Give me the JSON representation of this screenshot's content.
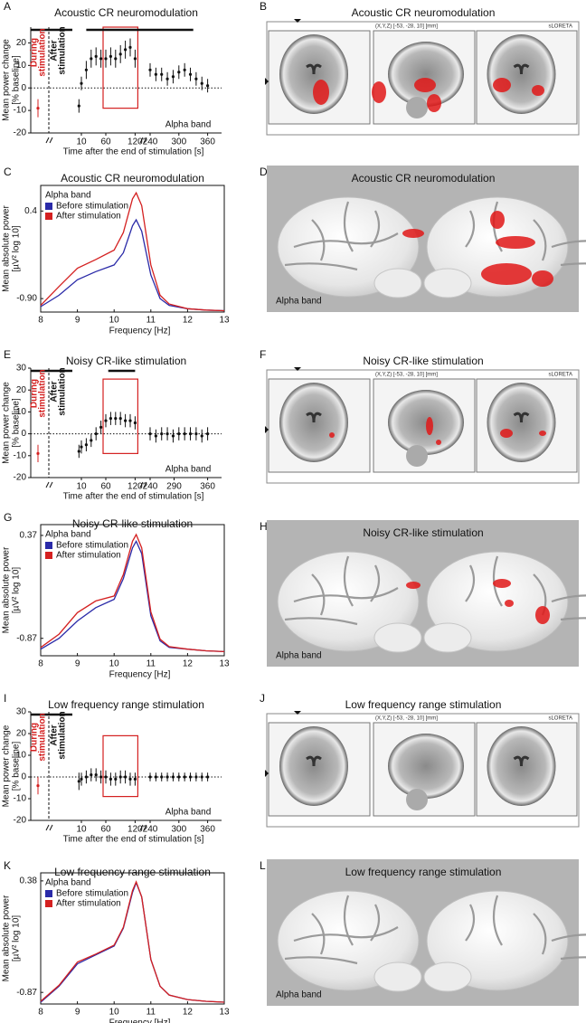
{
  "chart_data": [
    {
      "type": "errorbar",
      "letter": "A",
      "title": "Acoustic CR neuromodulation",
      "ylabel": [
        "Mean power change",
        "[% baseline]"
      ],
      "xlabel": "Time after the end of stimulation [s]",
      "during_label": [
        "During",
        "stimulation"
      ],
      "after_label": [
        "After",
        "stimulation"
      ],
      "band": "Alpha band",
      "ylim": [
        -20,
        27
      ],
      "yticks": [
        -20,
        -10,
        0,
        10,
        20
      ],
      "xticks": [
        10,
        60,
        120,
        240,
        300,
        360
      ],
      "during": {
        "value": -9,
        "error": 4,
        "color": "#d42020"
      },
      "sig_during": true,
      "sig_bars": [
        [
          20,
          330
        ]
      ],
      "highlight": {
        "xlim": [
          60,
          120
        ],
        "ylim": [
          -9,
          27
        ],
        "color": "#d42020"
      },
      "series": [
        {
          "x": [
            5,
            10,
            20,
            30,
            40,
            50,
            60,
            70,
            80,
            90,
            100,
            110,
            120
          ],
          "values": [
            -8,
            2,
            8,
            13,
            14,
            13,
            13,
            14,
            13,
            15,
            17,
            18,
            13
          ],
          "errors": [
            3,
            3,
            4,
            4,
            4,
            4,
            4,
            4,
            4,
            4,
            4,
            4,
            4
          ],
          "color": "#111111"
        },
        {
          "x": [
            240,
            252,
            264,
            276,
            288,
            300,
            312,
            324,
            336,
            348,
            360
          ],
          "values": [
            8,
            6,
            6,
            4,
            5,
            7,
            8,
            6,
            4,
            2,
            1
          ],
          "errors": [
            3,
            3,
            3,
            3,
            3,
            3,
            3,
            3,
            3,
            3,
            3
          ],
          "color": "#111111"
        }
      ]
    },
    {
      "type": "line",
      "letter": "C",
      "title": "Acoustic CR neuromodulation",
      "ylabel": [
        "Mean absolute power",
        "[µV² log 10]"
      ],
      "xlabel": "Frequency [Hz]",
      "legend_title": "Alpha band",
      "ylim": [
        -1.1,
        0.78
      ],
      "yticks": [
        {
          "value": -0.9,
          "label": "-0.90"
        },
        0.4
      ],
      "xlim": [
        8,
        13
      ],
      "xticks": [
        8,
        9,
        10,
        11,
        12,
        13
      ],
      "x": [
        8,
        8.5,
        9,
        9.5,
        10,
        10.25,
        10.5,
        10.6,
        10.75,
        11,
        11.25,
        11.5,
        12,
        12.5,
        13
      ],
      "series": [
        {
          "name": "Before stimulation",
          "color": "#2a2aa8",
          "values": [
            -1.02,
            -0.85,
            -0.62,
            -0.5,
            -0.4,
            -0.22,
            0.18,
            0.27,
            0.1,
            -0.55,
            -0.9,
            -1.0,
            -1.05,
            -1.07,
            -1.08
          ]
        },
        {
          "name": "After stimulation",
          "color": "#d42020",
          "values": [
            -1.0,
            -0.72,
            -0.45,
            -0.32,
            -0.18,
            0.08,
            0.58,
            0.67,
            0.48,
            -0.4,
            -0.85,
            -0.98,
            -1.05,
            -1.07,
            -1.08
          ]
        }
      ]
    },
    {
      "type": "errorbar",
      "letter": "E",
      "title": "Noisy CR-like stimulation",
      "ylabel": [
        "Mean power change",
        "[% baseline]"
      ],
      "xlabel": "Time after the end of stimulation [s]",
      "during_label": [
        "During",
        "stimulation"
      ],
      "after_label": [
        "After",
        "stimulation"
      ],
      "band": "Alpha band",
      "ylim": [
        -20,
        30
      ],
      "yticks": [
        -20,
        -10,
        0,
        10,
        20,
        30
      ],
      "xticks": [
        10,
        60,
        120,
        240,
        290,
        360
      ],
      "during": {
        "value": -9,
        "error": 4,
        "color": "#d42020"
      },
      "sig_during": true,
      "sig_bars": [
        [
          65,
          120
        ]
      ],
      "highlight": {
        "xlim": [
          60,
          120
        ],
        "ylim": [
          -9,
          25
        ],
        "color": "#d42020"
      },
      "series": [
        {
          "x": [
            5,
            10,
            20,
            30,
            40,
            50,
            60,
            70,
            80,
            90,
            100,
            110,
            120
          ],
          "values": [
            -8,
            -6,
            -5,
            -3,
            0,
            3,
            6,
            7,
            7,
            7,
            6,
            6,
            5
          ],
          "errors": [
            3,
            3,
            3,
            3,
            3,
            3,
            3,
            3,
            3,
            3,
            3,
            3,
            3
          ],
          "color": "#111111"
        },
        {
          "x": [
            240,
            252,
            264,
            276,
            288,
            300,
            312,
            324,
            336,
            348,
            360
          ],
          "values": [
            0,
            -1,
            0,
            0,
            -1,
            0,
            0,
            0,
            0,
            -1,
            0
          ],
          "errors": [
            3,
            3,
            3,
            3,
            3,
            3,
            3,
            3,
            3,
            3,
            3
          ],
          "color": "#111111"
        }
      ]
    },
    {
      "type": "line",
      "letter": "G",
      "title": "Noisy CR-like stimulation",
      "ylabel": [
        "Mean absolute power",
        "[µV² log 10]"
      ],
      "xlabel": "Frequency [Hz]",
      "legend_title": "Alpha band",
      "ylim": [
        -1.08,
        0.5
      ],
      "yticks": [
        -0.87,
        0.37
      ],
      "xlim": [
        8,
        13
      ],
      "xticks": [
        8,
        9,
        10,
        11,
        12,
        13
      ],
      "x": [
        8,
        8.5,
        9,
        9.5,
        10,
        10.25,
        10.5,
        10.6,
        10.75,
        11,
        11.25,
        11.5,
        12,
        12.5,
        13
      ],
      "series": [
        {
          "name": "Before stimulation",
          "color": "#2a2aa8",
          "values": [
            -1.0,
            -0.87,
            -0.66,
            -0.5,
            -0.4,
            -0.15,
            0.22,
            0.3,
            0.15,
            -0.6,
            -0.9,
            -0.98,
            -1.0,
            -1.02,
            -1.03
          ]
        },
        {
          "name": "After stimulation",
          "color": "#d42020",
          "values": [
            -0.98,
            -0.82,
            -0.56,
            -0.42,
            -0.36,
            -0.1,
            0.3,
            0.38,
            0.22,
            -0.55,
            -0.88,
            -0.97,
            -1.0,
            -1.02,
            -1.03
          ]
        }
      ]
    },
    {
      "type": "errorbar",
      "letter": "I",
      "title": "Low frequency range stimulation",
      "ylabel": [
        "Mean power change",
        "[% baseline]"
      ],
      "xlabel": "Time after the end of stimulation [s]",
      "during_label": [
        "During",
        "stimulation"
      ],
      "after_label": [
        "After",
        "stimulation"
      ],
      "band": "Alpha band",
      "ylim": [
        -20,
        30
      ],
      "yticks": [
        -20,
        -10,
        0,
        10,
        20,
        30
      ],
      "xticks": [
        10,
        60,
        120,
        240,
        300,
        360
      ],
      "during": {
        "value": -4,
        "error": 4,
        "color": "#d42020"
      },
      "sig_during": true,
      "sig_bars": [],
      "highlight": {
        "xlim": [
          60,
          120
        ],
        "ylim": [
          -9,
          19
        ],
        "color": "#d42020"
      },
      "series": [
        {
          "x": [
            5,
            10,
            20,
            30,
            40,
            50,
            60,
            70,
            80,
            90,
            100,
            110,
            120
          ],
          "values": [
            -2,
            -1,
            0,
            1,
            1,
            0,
            0,
            -1,
            -1,
            0,
            0,
            -1,
            -1
          ],
          "errors": [
            4,
            3,
            3,
            3,
            3,
            3,
            3,
            3,
            3,
            3,
            3,
            3,
            3
          ],
          "color": "#111111"
        },
        {
          "x": [
            240,
            252,
            264,
            276,
            288,
            300,
            312,
            324,
            336,
            348,
            360
          ],
          "values": [
            0,
            0,
            0,
            0,
            0,
            0,
            0,
            0,
            0,
            0,
            0
          ],
          "errors": [
            2,
            2,
            2,
            2,
            2,
            2,
            2,
            2,
            2,
            2,
            2
          ],
          "color": "#111111"
        }
      ]
    },
    {
      "type": "line",
      "letter": "K",
      "title": "Low frequency range stimulation",
      "ylabel": [
        "Mean absolute power",
        "[µV² log 10]"
      ],
      "xlabel": "Frequency [Hz]",
      "legend_title": "Alpha band",
      "ylim": [
        -1.0,
        0.47
      ],
      "yticks": [
        -0.87,
        0.38
      ],
      "xlim": [
        8,
        13
      ],
      "xticks": [
        8,
        9,
        10,
        11,
        12,
        13
      ],
      "x": [
        8,
        8.5,
        9,
        9.5,
        10,
        10.25,
        10.5,
        10.6,
        10.75,
        11,
        11.25,
        11.5,
        12,
        12.5,
        13
      ],
      "series": [
        {
          "name": "Before stimulation",
          "color": "#2a2aa8",
          "values": [
            -0.98,
            -0.8,
            -0.55,
            -0.45,
            -0.35,
            -0.15,
            0.25,
            0.36,
            0.2,
            -0.5,
            -0.8,
            -0.9,
            -0.95,
            -0.97,
            -0.98
          ]
        },
        {
          "name": "After stimulation",
          "color": "#d42020",
          "values": [
            -0.97,
            -0.79,
            -0.53,
            -0.44,
            -0.34,
            -0.14,
            0.27,
            0.37,
            0.2,
            -0.5,
            -0.8,
            -0.9,
            -0.95,
            -0.97,
            -0.98
          ]
        }
      ]
    }
  ],
  "image_panels": [
    {
      "kind": "slices",
      "letter": "B",
      "title": "Acoustic CR neuromodulation",
      "header": "(X,Y,Z) [-53, -28, 10] [mm]",
      "software": "sLORETA"
    },
    {
      "kind": "brain",
      "letter": "D",
      "title": "Acoustic CR neuromodulation",
      "band": "Alpha band"
    },
    {
      "kind": "slices",
      "letter": "F",
      "title": "Noisy CR-like stimulation",
      "header": "(X,Y,Z) [-53, -28, 10] [mm]",
      "software": "sLORETA"
    },
    {
      "kind": "brain",
      "letter": "H",
      "title": "Noisy CR-like stimulation",
      "band": "Alpha band"
    },
    {
      "kind": "slices",
      "letter": "J",
      "title": "Low frequency range stimulation",
      "header": "(X,Y,Z) [-53, -28, 10] [mm]",
      "software": "sLORETA"
    },
    {
      "kind": "brain",
      "letter": "L",
      "title": "Low frequency range stimulation",
      "band": "Alpha band"
    }
  ]
}
